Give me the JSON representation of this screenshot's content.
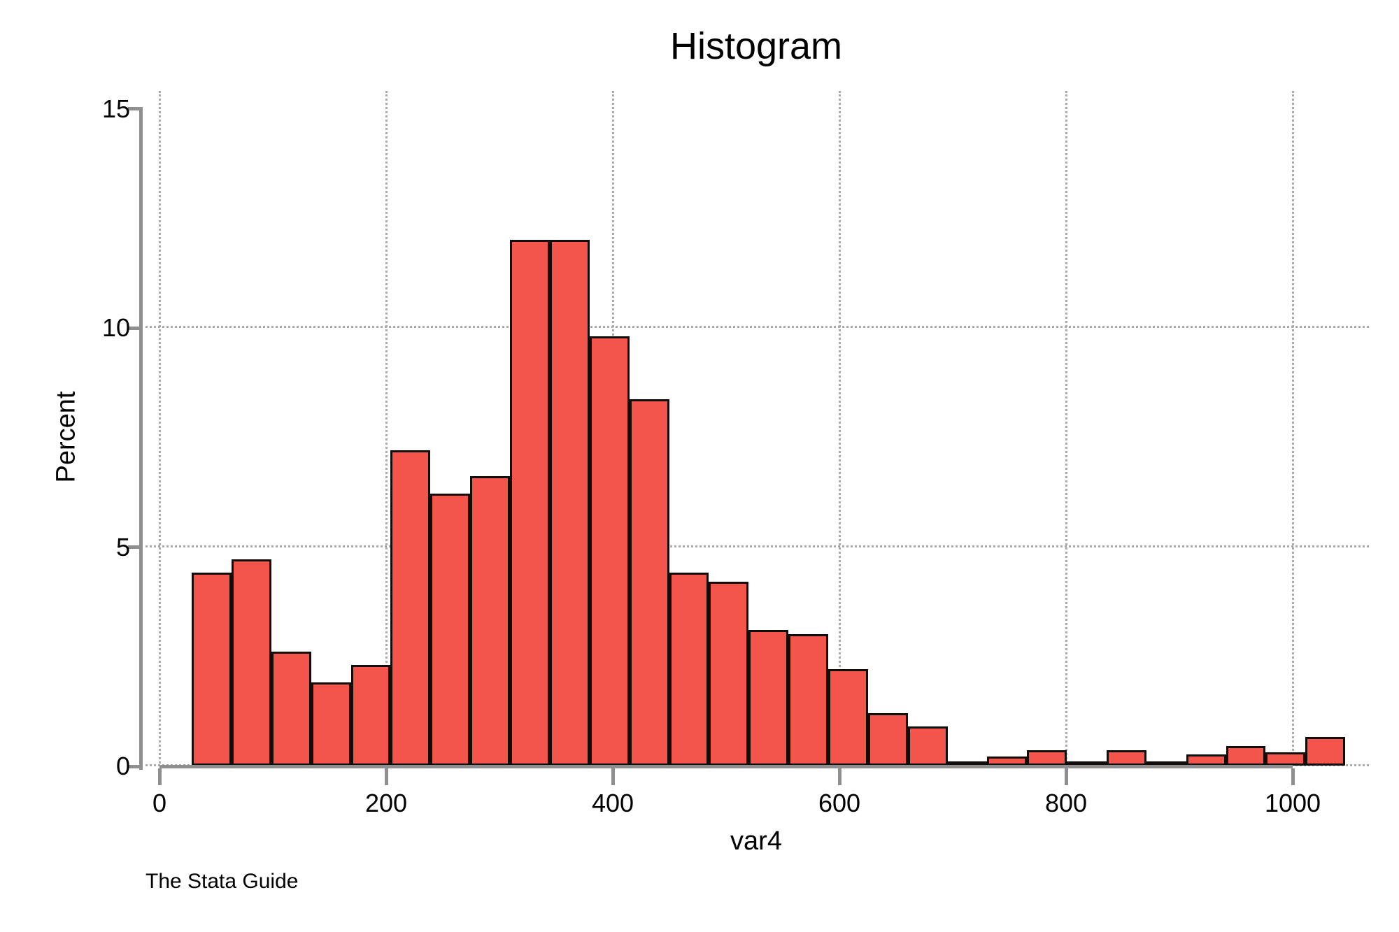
{
  "title": "Histogram",
  "caption": "The Stata Guide",
  "colors": {
    "bar_fill": "#f3554a",
    "bar_border": "#120d09",
    "axis": "#8f8f8f",
    "grid": "#ababab",
    "text": "#000000",
    "background": "#ffffff"
  },
  "chart_data": {
    "type": "bar",
    "subtype": "histogram",
    "title": "Histogram",
    "xlabel": "var4",
    "ylabel": "Percent",
    "x_ticks": [
      0,
      200,
      400,
      600,
      800,
      1000
    ],
    "y_ticks": [
      0,
      5,
      10,
      15
    ],
    "xlim": [
      -17,
      1069
    ],
    "ylim": [
      0,
      15
    ],
    "grid": "dotted, horizontal at 0/5/10, vertical at every x tick",
    "legend": "none",
    "bin_width": 35.1,
    "bins": [
      {
        "x0": 28.5,
        "percent": 4.4
      },
      {
        "x0": 63.6,
        "percent": 4.7
      },
      {
        "x0": 98.7,
        "percent": 2.6
      },
      {
        "x0": 133.8,
        "percent": 1.9
      },
      {
        "x0": 168.9,
        "percent": 2.3
      },
      {
        "x0": 204.0,
        "percent": 7.2
      },
      {
        "x0": 239.1,
        "percent": 6.2
      },
      {
        "x0": 274.2,
        "percent": 6.6
      },
      {
        "x0": 309.3,
        "percent": 12.0
      },
      {
        "x0": 344.4,
        "percent": 12.0
      },
      {
        "x0": 379.5,
        "percent": 9.8
      },
      {
        "x0": 414.6,
        "percent": 8.35
      },
      {
        "x0": 449.7,
        "percent": 4.4
      },
      {
        "x0": 484.8,
        "percent": 4.2
      },
      {
        "x0": 519.9,
        "percent": 3.1
      },
      {
        "x0": 555.0,
        "percent": 3.0
      },
      {
        "x0": 590.1,
        "percent": 2.2
      },
      {
        "x0": 625.2,
        "percent": 1.2
      },
      {
        "x0": 660.3,
        "percent": 0.9
      },
      {
        "x0": 695.4,
        "percent": 0.1
      },
      {
        "x0": 730.5,
        "percent": 0.2
      },
      {
        "x0": 765.6,
        "percent": 0.35
      },
      {
        "x0": 800.7,
        "percent": 0.1
      },
      {
        "x0": 835.8,
        "percent": 0.35
      },
      {
        "x0": 870.9,
        "percent": 0.1
      },
      {
        "x0": 906.0,
        "percent": 0.25
      },
      {
        "x0": 941.1,
        "percent": 0.45
      },
      {
        "x0": 976.2,
        "percent": 0.3
      },
      {
        "x0": 1011.3,
        "percent": 0.65
      }
    ]
  }
}
